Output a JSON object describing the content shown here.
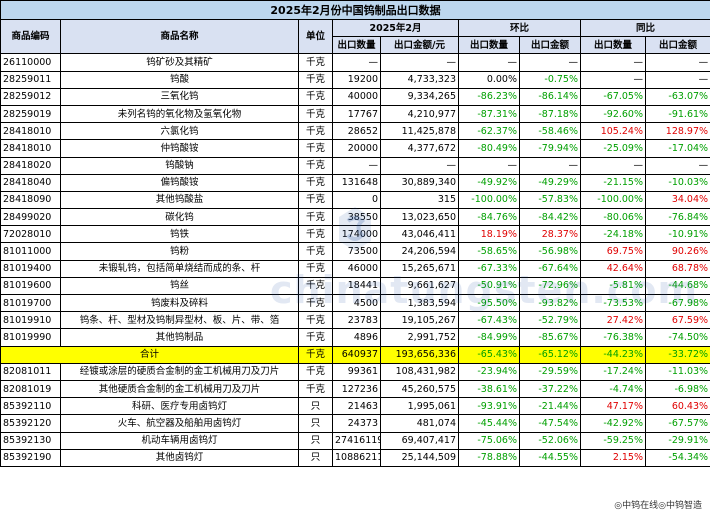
{
  "title": "2025年2月份中国钨制品出口数据",
  "headers": {
    "code": "商品编码",
    "name": "商品名称",
    "unit": "单位",
    "period": "2025年2月",
    "mom": "环比",
    "yoy": "同比",
    "qty": "出口数量",
    "amount": "出口金额/元",
    "sub_qty": "出口数量",
    "sub_amount": "出口金额"
  },
  "rows": [
    {
      "code": "26110000",
      "name": "钨矿砂及其精矿",
      "unit": "千克",
      "qty": "—",
      "amount": "—",
      "mom_qty": "—",
      "mom_amt": "—",
      "yoy_qty": "—",
      "yoy_amt": "—"
    },
    {
      "code": "28259011",
      "name": "钨酸",
      "unit": "千克",
      "qty": "19200",
      "amount": "4,733,323",
      "mom_qty": "0.00%",
      "mom_amt": "-0.75%",
      "yoy_qty": "—",
      "yoy_amt": "—"
    },
    {
      "code": "28259012",
      "name": "三氧化钨",
      "unit": "千克",
      "qty": "40000",
      "amount": "9,334,265",
      "mom_qty": "-86.23%",
      "mom_amt": "-86.14%",
      "yoy_qty": "-67.05%",
      "yoy_amt": "-63.07%"
    },
    {
      "code": "28259019",
      "name": "未列名钨的氧化物及氢氧化物",
      "unit": "千克",
      "qty": "17767",
      "amount": "4,210,977",
      "mom_qty": "-87.31%",
      "mom_amt": "-87.18%",
      "yoy_qty": "-92.60%",
      "yoy_amt": "-91.61%"
    },
    {
      "code": "28418010",
      "name": "六氯化钨",
      "unit": "千克",
      "qty": "28652",
      "amount": "11,425,878",
      "mom_qty": "-62.37%",
      "mom_amt": "-58.46%",
      "yoy_qty": "105.24%",
      "yoy_amt": "128.97%"
    },
    {
      "code": "28418010",
      "name": "仲钨酸铵",
      "unit": "千克",
      "qty": "20000",
      "amount": "4,377,672",
      "mom_qty": "-80.49%",
      "mom_amt": "-79.94%",
      "yoy_qty": "-25.09%",
      "yoy_amt": "-17.04%"
    },
    {
      "code": "28418020",
      "name": "钨酸钠",
      "unit": "千克",
      "qty": "—",
      "amount": "—",
      "mom_qty": "—",
      "mom_amt": "—",
      "yoy_qty": "—",
      "yoy_amt": "—"
    },
    {
      "code": "28418040",
      "name": "偏钨酸铵",
      "unit": "千克",
      "qty": "131648",
      "amount": "30,889,340",
      "mom_qty": "-49.92%",
      "mom_amt": "-49.29%",
      "yoy_qty": "-21.15%",
      "yoy_amt": "-10.03%"
    },
    {
      "code": "28418090",
      "name": "其他钨酸盐",
      "unit": "千克",
      "qty": "0",
      "amount": "315",
      "mom_qty": "-100.00%",
      "mom_amt": "-57.83%",
      "yoy_qty": "-100.00%",
      "yoy_amt": "34.04%"
    },
    {
      "code": "28499020",
      "name": "碳化钨",
      "unit": "千克",
      "qty": "38550",
      "amount": "13,023,650",
      "mom_qty": "-84.76%",
      "mom_amt": "-84.42%",
      "yoy_qty": "-80.06%",
      "yoy_amt": "-76.84%"
    },
    {
      "code": "72028010",
      "name": "钨铁",
      "unit": "千克",
      "qty": "174000",
      "amount": "43,046,411",
      "mom_qty": "18.19%",
      "mom_amt": "28.37%",
      "yoy_qty": "-24.18%",
      "yoy_amt": "-10.91%"
    },
    {
      "code": "81011000",
      "name": "钨粉",
      "unit": "千克",
      "qty": "73500",
      "amount": "24,206,594",
      "mom_qty": "-58.65%",
      "mom_amt": "-56.98%",
      "yoy_qty": "69.75%",
      "yoy_amt": "90.26%"
    },
    {
      "code": "81019400",
      "name": "未锻轧钨，包括简单烧结而成的条、杆",
      "unit": "千克",
      "qty": "46000",
      "amount": "15,265,671",
      "mom_qty": "-67.33%",
      "mom_amt": "-67.64%",
      "yoy_qty": "42.64%",
      "yoy_amt": "68.78%"
    },
    {
      "code": "81019600",
      "name": "钨丝",
      "unit": "千克",
      "qty": "18441",
      "amount": "9,661,627",
      "mom_qty": "-50.91%",
      "mom_amt": "-72.96%",
      "yoy_qty": "-5.81%",
      "yoy_amt": "-44.68%"
    },
    {
      "code": "81019700",
      "name": "钨废料及碎料",
      "unit": "千克",
      "qty": "4500",
      "amount": "1,383,594",
      "mom_qty": "-95.50%",
      "mom_amt": "-93.82%",
      "yoy_qty": "-73.53%",
      "yoy_amt": "-67.98%"
    },
    {
      "code": "81019910",
      "name": "钨条、杆、型材及钨制异型材、板、片、带、箔",
      "unit": "千克",
      "qty": "23783",
      "amount": "19,105,267",
      "mom_qty": "-67.43%",
      "mom_amt": "-52.79%",
      "yoy_qty": "27.42%",
      "yoy_amt": "67.59%"
    },
    {
      "code": "81019990",
      "name": "其他钨制品",
      "unit": "千克",
      "qty": "4896",
      "amount": "2,991,752",
      "mom_qty": "-84.99%",
      "mom_amt": "-85.67%",
      "yoy_qty": "-76.38%",
      "yoy_amt": "-74.50%"
    },
    {
      "code": "合计",
      "name": "",
      "unit": "千克",
      "qty": "640937",
      "amount": "193,656,336",
      "mom_qty": "-65.43%",
      "mom_amt": "-65.12%",
      "yoy_qty": "-44.23%",
      "yoy_amt": "-33.72%",
      "total": true
    },
    {
      "code": "82081011",
      "name": "经镀或涂层的硬质合金制的金工机械用刀及刀片",
      "unit": "千克",
      "qty": "99361",
      "amount": "108,431,982",
      "mom_qty": "-23.94%",
      "mom_amt": "-29.59%",
      "yoy_qty": "-17.24%",
      "yoy_amt": "-11.03%"
    },
    {
      "code": "82081019",
      "name": "其他硬质合金制的金工机械用刀及刀片",
      "unit": "千克",
      "qty": "127236",
      "amount": "45,260,575",
      "mom_qty": "-38.61%",
      "mom_amt": "-37.22%",
      "yoy_qty": "-4.74%",
      "yoy_amt": "-6.98%"
    },
    {
      "code": "85392110",
      "name": "科研、医疗专用卤钨灯",
      "unit": "只",
      "qty": "21463",
      "amount": "1,995,061",
      "mom_qty": "-93.91%",
      "mom_amt": "-21.44%",
      "yoy_qty": "47.17%",
      "yoy_amt": "60.43%"
    },
    {
      "code": "85392120",
      "name": "火车、航空器及船舶用卤钨灯",
      "unit": "只",
      "qty": "24373",
      "amount": "481,074",
      "mom_qty": "-45.44%",
      "mom_amt": "-47.54%",
      "yoy_qty": "-42.92%",
      "yoy_amt": "-67.57%"
    },
    {
      "code": "85392130",
      "name": "机动车辆用卤钨灯",
      "unit": "只",
      "qty": "27416119",
      "amount": "69,407,417",
      "mom_qty": "-75.06%",
      "mom_amt": "-52.06%",
      "yoy_qty": "-59.25%",
      "yoy_amt": "-29.91%"
    },
    {
      "code": "85392190",
      "name": "其他卤钨灯",
      "unit": "只",
      "qty": "10886211",
      "amount": "25,144,509",
      "mom_qty": "-78.88%",
      "mom_amt": "-44.55%",
      "yoy_qty": "2.15%",
      "yoy_amt": "-54.34%"
    }
  ],
  "watermark": "chinatungsten.com",
  "footer": "◎中钨在线◎中钨智造",
  "colors": {
    "negative": "#00a000",
    "positive": "#e00000",
    "total": "#ffff00",
    "header": "#d9e1f2",
    "title": "#bdd7ee"
  }
}
